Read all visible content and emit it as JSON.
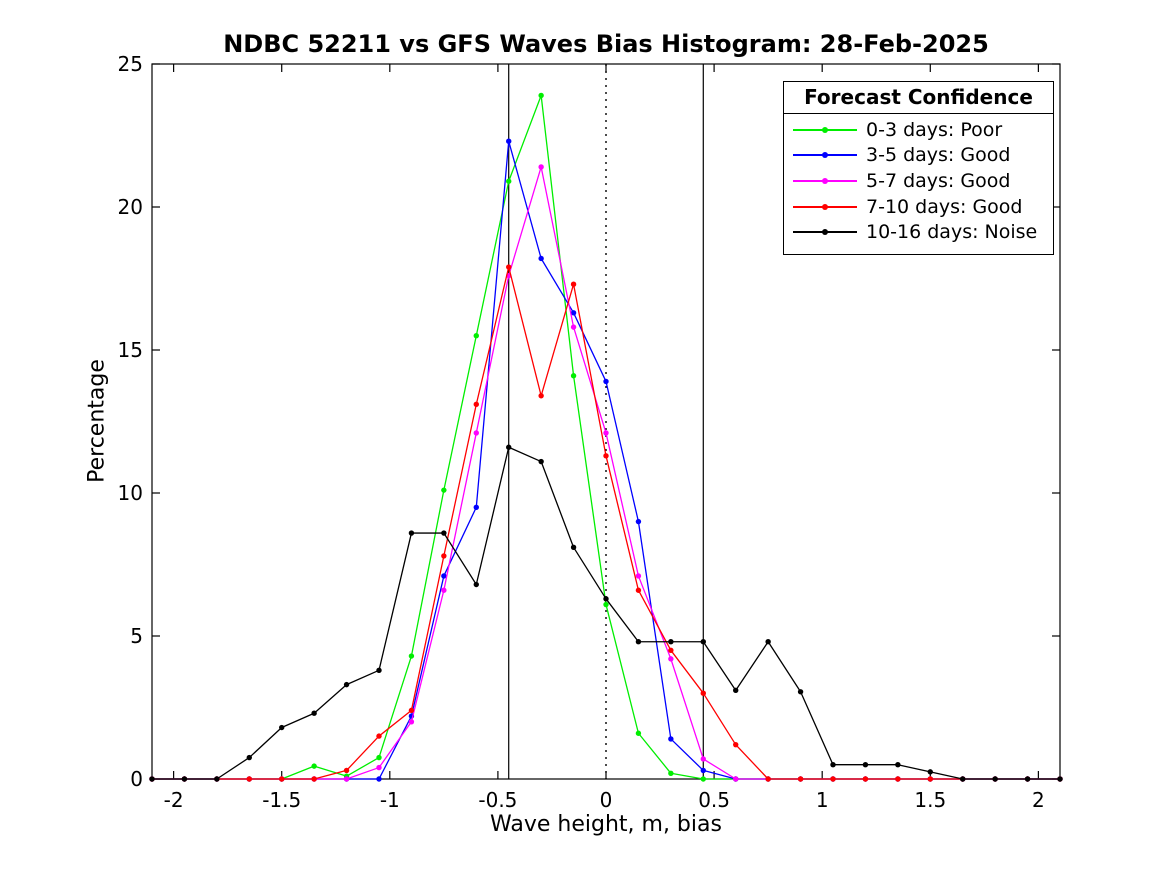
{
  "chart_data": {
    "type": "line",
    "title": "NDBC 52211 vs GFS Waves Bias Histogram: 28-Feb-2025",
    "xlabel": "Wave height, m, bias",
    "ylabel": "Percentage",
    "xlim": [
      -2.1,
      2.1
    ],
    "ylim": [
      0,
      25
    ],
    "xticks": [
      -2,
      -1.5,
      -1,
      -0.5,
      0,
      0.5,
      1,
      1.5,
      2
    ],
    "yticks": [
      0,
      5,
      10,
      15,
      20,
      25
    ],
    "grid": false,
    "x": [
      -2.1,
      -1.95,
      -1.8,
      -1.65,
      -1.5,
      -1.35,
      -1.2,
      -1.05,
      -0.9,
      -0.75,
      -0.6,
      -0.45,
      -0.3,
      -0.15,
      0,
      0.15,
      0.3,
      0.45,
      0.6,
      0.75,
      0.9,
      1.05,
      1.2,
      1.35,
      1.5,
      1.65,
      1.8,
      1.95,
      2.1
    ],
    "series": [
      {
        "name": "0-3 days: Poor",
        "color": "#00ee00",
        "values": [
          0,
          0,
          0,
          0,
          0,
          0.45,
          0.1,
          0.75,
          4.3,
          10.1,
          15.5,
          20.9,
          23.9,
          14.1,
          6.1,
          1.6,
          0.2,
          0,
          0,
          0,
          0,
          0,
          0,
          0,
          0,
          0,
          0,
          0,
          0
        ]
      },
      {
        "name": "3-5 days: Good",
        "color": "#0000ff",
        "values": [
          0,
          0,
          0,
          0,
          0,
          0,
          0,
          0,
          2.2,
          7.1,
          9.5,
          22.3,
          18.2,
          16.3,
          13.9,
          9.0,
          1.4,
          0.3,
          0,
          0,
          0,
          0,
          0,
          0,
          0,
          0,
          0,
          0,
          0
        ]
      },
      {
        "name": "5-7 days: Good",
        "color": "#ff00ff",
        "values": [
          0,
          0,
          0,
          0,
          0,
          0,
          0,
          0.4,
          2.0,
          6.6,
          12.1,
          17.6,
          21.4,
          15.8,
          12.1,
          7.1,
          4.2,
          0.7,
          0,
          0,
          0,
          0,
          0,
          0,
          0,
          0,
          0,
          0,
          0
        ]
      },
      {
        "name": "7-10 days: Good",
        "color": "#ff0000",
        "values": [
          0,
          0,
          0,
          0,
          0,
          0,
          0.3,
          1.5,
          2.4,
          7.8,
          13.1,
          17.9,
          13.4,
          17.3,
          11.3,
          6.6,
          4.5,
          3.0,
          1.2,
          0,
          0,
          0,
          0,
          0,
          0,
          0,
          0,
          0,
          0
        ]
      },
      {
        "name": "10-16 days: Noise",
        "color": "#000000",
        "values": [
          0,
          0,
          0,
          0.75,
          1.8,
          2.3,
          3.3,
          3.8,
          8.6,
          8.6,
          6.8,
          11.6,
          11.1,
          8.1,
          6.3,
          4.8,
          4.8,
          4.8,
          3.1,
          4.8,
          3.05,
          0.5,
          0.5,
          0.5,
          0.25,
          0,
          0,
          0,
          0
        ]
      }
    ],
    "reference_lines": [
      {
        "x": -0.45,
        "style": "solid",
        "color": "#000000"
      },
      {
        "x": 0,
        "style": "dotted",
        "color": "#000000"
      },
      {
        "x": 0.45,
        "style": "solid",
        "color": "#000000"
      }
    ],
    "legend": {
      "title": "Forecast Confidence",
      "position": "top-right"
    }
  }
}
